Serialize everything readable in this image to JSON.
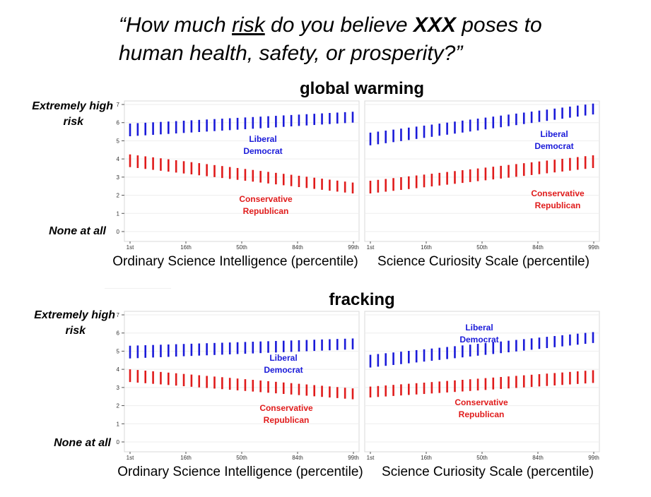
{
  "question": {
    "open": "“How much ",
    "risk": "risk",
    "mid": " do you believe ",
    "xxx": "XXX",
    "tail1": " poses to",
    "line2": "human health, safety, or prosperity?”"
  },
  "colors": {
    "liberal": "#1a1ad9",
    "conservative": "#e01b1b"
  },
  "labels": {
    "extremely_high_1": "Extremely high",
    "risk": "risk",
    "none_at_all": "None at all"
  },
  "chart_data": [
    {
      "type": "scatter",
      "block": "global warming",
      "xlabel": "Ordinary Science Intelligence (percentile)",
      "xticks": [
        "1st",
        "16th",
        "50th",
        "84th",
        "99th"
      ],
      "yticks": [
        "0",
        "1",
        "2",
        "3",
        "4",
        "5",
        "6",
        "7"
      ],
      "ylim": [
        0,
        7
      ],
      "n_points": 30,
      "annotations": {
        "liberal": [
          "Liberal",
          "Democrat"
        ],
        "conservative": [
          "Conservative",
          "Republican"
        ]
      },
      "series": [
        {
          "name": "Liberal Democrat",
          "color": "#1a1ad9",
          "start": 5.6,
          "end": 6.3,
          "halfwidth_start": 0.35,
          "halfwidth_end": 0.3
        },
        {
          "name": "Conservative Republican",
          "color": "#e01b1b",
          "start": 3.9,
          "end": 2.4,
          "halfwidth_start": 0.35,
          "halfwidth_end": 0.3
        }
      ]
    },
    {
      "type": "scatter",
      "block": "global warming",
      "xlabel": "Science Curiosity Scale (percentile)",
      "xticks": [
        "1st",
        "16th",
        "50th",
        "84th",
        "99th"
      ],
      "ylim": [
        0,
        7
      ],
      "n_points": 30,
      "annotations": {
        "liberal": [
          "Liberal",
          "Democrat"
        ],
        "conservative": [
          "Conservative",
          "Republican"
        ]
      },
      "series": [
        {
          "name": "Liberal Democrat",
          "color": "#1a1ad9",
          "start": 5.1,
          "end": 6.75,
          "halfwidth_start": 0.35,
          "halfwidth_end": 0.3
        },
        {
          "name": "Conservative Republican",
          "color": "#e01b1b",
          "start": 2.45,
          "end": 3.85,
          "halfwidth_start": 0.35,
          "halfwidth_end": 0.35
        }
      ]
    },
    {
      "type": "scatter",
      "block": "fracking",
      "xlabel": "Ordinary Science Intelligence (percentile)",
      "xticks": [
        "1st",
        "16th",
        "50th",
        "84th",
        "99th"
      ],
      "yticks": [
        "0",
        "1",
        "2",
        "3",
        "4",
        "5",
        "6",
        "7"
      ],
      "ylim": [
        0,
        7
      ],
      "n_points": 30,
      "annotations": {
        "liberal": [
          "Liberal",
          "Democrat"
        ],
        "conservative": [
          "Conservative",
          "Republican"
        ]
      },
      "series": [
        {
          "name": "Liberal Democrat",
          "color": "#1a1ad9",
          "start": 4.95,
          "end": 5.4,
          "halfwidth_start": 0.35,
          "halfwidth_end": 0.3
        },
        {
          "name": "Conservative Republican",
          "color": "#e01b1b",
          "start": 3.65,
          "end": 2.65,
          "halfwidth_start": 0.35,
          "halfwidth_end": 0.3
        }
      ]
    },
    {
      "type": "scatter",
      "block": "fracking",
      "xlabel": "Science Curiosity Scale (percentile)",
      "xticks": [
        "1st",
        "16th",
        "50th",
        "84th",
        "99th"
      ],
      "ylim": [
        0,
        7
      ],
      "n_points": 30,
      "annotations": {
        "liberal": [
          "Liberal",
          "Democrat"
        ],
        "conservative": [
          "Conservative",
          "Republican"
        ]
      },
      "series": [
        {
          "name": "Liberal Democrat",
          "color": "#1a1ad9",
          "start": 4.45,
          "end": 5.75,
          "halfwidth_start": 0.35,
          "halfwidth_end": 0.3
        },
        {
          "name": "Conservative Republican",
          "color": "#e01b1b",
          "start": 2.75,
          "end": 3.6,
          "halfwidth_start": 0.3,
          "halfwidth_end": 0.35
        }
      ]
    }
  ]
}
